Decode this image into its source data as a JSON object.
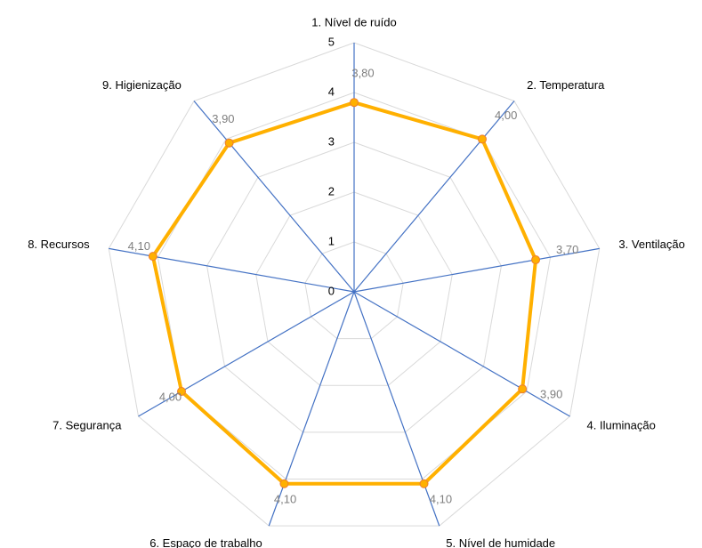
{
  "chart_data": {
    "type": "radar",
    "categories": [
      "1. Nível de ruído",
      "2. Temperatura",
      "3. Ventilação",
      "4. Iluminação",
      "5. Nível de humidade",
      "6. Espaço de trabalho",
      "7. Segurança",
      "8. Recursos",
      "9. Higienização"
    ],
    "series": [
      {
        "color": "#ffb000",
        "values": [
          3.8,
          4.0,
          3.7,
          3.9,
          4.1,
          4.1,
          4.0,
          4.1,
          3.9
        ],
        "value_labels": [
          "3,80",
          "4,00",
          "3,70",
          "3,90",
          "4,10",
          "4,10",
          "4,00",
          "4,10",
          "3,90"
        ]
      }
    ],
    "ylim": [
      0,
      5
    ],
    "yticks": [
      0,
      1,
      2,
      3,
      4,
      5
    ],
    "grid": true,
    "axis_color": "#4472c4"
  }
}
